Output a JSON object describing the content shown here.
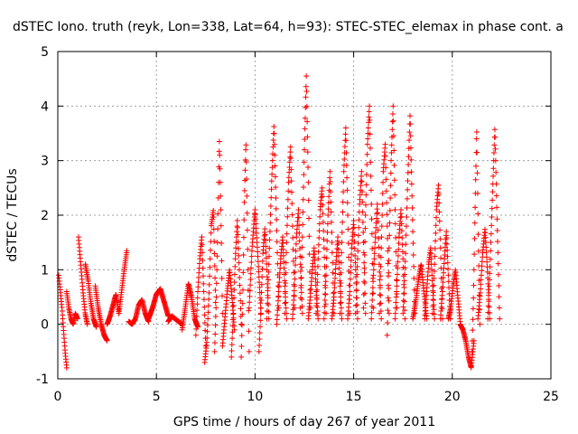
{
  "chart_data": {
    "type": "scatter",
    "title": "dSTEC Iono. truth (reyk, Lon=338, Lat=64, h=93): STEC-STEC_elemax in phase cont. a",
    "xlabel": "GPS time / hours of day 267 of year 2011",
    "ylabel": "dSTEC  / TECUs",
    "xlim": [
      0,
      25
    ],
    "ylim": [
      -1,
      5
    ],
    "xticks": [
      0,
      5,
      10,
      15,
      20,
      25
    ],
    "yticks": [
      -1,
      0,
      1,
      2,
      3,
      4,
      5
    ],
    "xtick_labels": [
      "0",
      "5",
      "10",
      "15",
      "20",
      "25"
    ],
    "ytick_labels": [
      "-1",
      "0",
      "1",
      "2",
      "3",
      "4",
      "5"
    ],
    "grid": true,
    "marker": "+",
    "color": "#ff0000",
    "series": [
      {
        "name": "dSTEC",
        "arcs": [
          {
            "t0": 0.05,
            "t1": 0.45,
            "shape": [
              0.9,
              0.6,
              0.3,
              -0.1,
              -0.5,
              -0.8
            ]
          },
          {
            "t0": 0.45,
            "t1": 1.0,
            "shape": [
              0.6,
              0.3,
              0.1,
              0.0,
              0.2,
              0.1
            ]
          },
          {
            "t0": 1.05,
            "t1": 1.5,
            "shape": [
              1.6,
              1.1,
              0.6,
              0.2,
              0.0
            ]
          },
          {
            "t0": 1.4,
            "t1": 1.95,
            "shape": [
              1.1,
              0.8,
              0.4,
              0.1,
              -0.05
            ]
          },
          {
            "t0": 1.9,
            "t1": 2.5,
            "shape": [
              0.7,
              0.3,
              0.0,
              -0.2,
              -0.3
            ]
          },
          {
            "t0": 2.5,
            "t1": 3.1,
            "shape": [
              0.0,
              0.15,
              0.35,
              0.55,
              0.2
            ]
          },
          {
            "t0": 3.1,
            "t1": 3.5,
            "shape": [
              0.2,
              0.6,
              1.0,
              1.35
            ]
          },
          {
            "t0": 3.6,
            "t1": 4.6,
            "shape": [
              0.05,
              0.0,
              0.1,
              0.35,
              0.45,
              0.2,
              0.05
            ]
          },
          {
            "t0": 4.6,
            "t1": 5.6,
            "shape": [
              0.1,
              0.3,
              0.55,
              0.65,
              0.4,
              0.15
            ]
          },
          {
            "t0": 5.6,
            "t1": 6.3,
            "shape": [
              0.05,
              0.15,
              0.1,
              0.05,
              0.0
            ]
          },
          {
            "t0": 6.3,
            "t1": 7.1,
            "shape": [
              -0.1,
              0.3,
              0.75,
              0.5,
              0.1,
              -0.05
            ]
          },
          {
            "t0": 7.0,
            "t1": 7.5,
            "shape": [
              -0.2,
              0.6,
              1.2,
              1.6,
              0.6,
              -0.4
            ]
          },
          {
            "t0": 7.45,
            "t1": 8.0,
            "shape": [
              -0.7,
              -0.3,
              0.6,
              1.8,
              2.1,
              0.4
            ]
          },
          {
            "t0": 7.95,
            "t1": 8.35,
            "shape": [
              -0.5,
              0.4,
              1.8,
              3.4,
              2.0,
              0.2
            ]
          },
          {
            "t0": 8.35,
            "t1": 8.95,
            "shape": [
              -0.4,
              0.1,
              0.6,
              1.0,
              0.5,
              -0.1
            ]
          },
          {
            "t0": 8.8,
            "t1": 9.3,
            "shape": [
              -0.6,
              0.2,
              1.2,
              1.9,
              1.0,
              0.0
            ]
          },
          {
            "t0": 9.3,
            "t1": 9.7,
            "shape": [
              -0.6,
              0.5,
              2.3,
              3.35,
              1.6,
              -0.5
            ]
          },
          {
            "t0": 9.7,
            "t1": 10.3,
            "shape": [
              0.3,
              1.4,
              2.1,
              1.2,
              0.2
            ]
          },
          {
            "t0": 10.2,
            "t1": 10.7,
            "shape": [
              -0.5,
              0.3,
              1.3,
              1.75,
              1.0,
              0.1
            ]
          },
          {
            "t0": 10.6,
            "t1": 11.2,
            "shape": [
              0.1,
              1.3,
              2.6,
              3.65,
              2.0,
              0.3
            ]
          },
          {
            "t0": 11.1,
            "t1": 11.6,
            "shape": [
              0.0,
              0.6,
              1.2,
              1.6,
              0.8,
              0.1
            ]
          },
          {
            "t0": 11.5,
            "t1": 12.0,
            "shape": [
              0.2,
              1.5,
              2.6,
              3.25,
              1.8,
              0.3
            ]
          },
          {
            "t0": 11.9,
            "t1": 12.4,
            "shape": [
              0.1,
              0.7,
              1.6,
              2.1,
              1.1,
              0.2
            ]
          },
          {
            "t0": 12.3,
            "t1": 12.8,
            "shape": [
              0.3,
              1.6,
              3.2,
              4.55,
              2.6,
              0.3
            ]
          },
          {
            "t0": 12.7,
            "t1": 13.2,
            "shape": [
              0.1,
              0.5,
              1.0,
              1.4,
              0.6,
              0.1
            ]
          },
          {
            "t0": 13.1,
            "t1": 13.6,
            "shape": [
              0.2,
              1.2,
              2.1,
              2.5,
              1.4,
              0.2
            ]
          },
          {
            "t0": 13.5,
            "t1": 14.0,
            "shape": [
              0.1,
              0.9,
              2.0,
              2.8,
              1.5,
              0.2
            ]
          },
          {
            "t0": 13.9,
            "t1": 14.4,
            "shape": [
              0.1,
              0.5,
              1.1,
              1.6,
              0.8,
              0.1
            ]
          },
          {
            "t0": 14.3,
            "t1": 14.8,
            "shape": [
              0.2,
              1.5,
              2.8,
              3.6,
              2.0,
              0.2
            ]
          },
          {
            "t0": 14.7,
            "t1": 15.2,
            "shape": [
              0.1,
              0.6,
              1.4,
              1.9,
              1.0,
              0.1
            ]
          },
          {
            "t0": 15.1,
            "t1": 15.6,
            "shape": [
              0.2,
              1.2,
              2.2,
              2.8,
              1.5,
              0.2
            ]
          },
          {
            "t0": 15.5,
            "t1": 16.0,
            "shape": [
              0.3,
              2.0,
              3.3,
              4.0,
              2.2,
              0.3
            ]
          },
          {
            "t0": 15.9,
            "t1": 16.4,
            "shape": [
              0.1,
              0.9,
              1.6,
              2.2,
              1.1,
              0.1
            ]
          },
          {
            "t0": 16.3,
            "t1": 16.8,
            "shape": [
              0.2,
              1.4,
              2.8,
              3.3,
              1.8,
              0.2
            ]
          },
          {
            "t0": 16.7,
            "t1": 17.2,
            "shape": [
              -0.2,
              1.4,
              3.0,
              4.0,
              2.1,
              0.3
            ]
          },
          {
            "t0": 17.1,
            "t1": 17.6,
            "shape": [
              0.1,
              0.8,
              1.6,
              2.1,
              1.2,
              0.1
            ]
          },
          {
            "t0": 17.5,
            "t1": 18.1,
            "shape": [
              0.2,
              1.2,
              2.6,
              3.85,
              2.0,
              0.2
            ]
          },
          {
            "t0": 18.0,
            "t1": 18.7,
            "shape": [
              0.1,
              0.4,
              0.8,
              1.1,
              0.6,
              0.1
            ]
          },
          {
            "t0": 18.6,
            "t1": 19.1,
            "shape": [
              0.1,
              0.6,
              1.1,
              1.4,
              0.7,
              0.1
            ]
          },
          {
            "t0": 19.0,
            "t1": 19.5,
            "shape": [
              0.2,
              1.1,
              2.1,
              2.55,
              1.4,
              0.1
            ]
          },
          {
            "t0": 19.4,
            "t1": 19.9,
            "shape": [
              0.1,
              0.6,
              1.2,
              1.7,
              0.9,
              0.1
            ]
          },
          {
            "t0": 19.8,
            "t1": 20.4,
            "shape": [
              0.1,
              0.3,
              0.7,
              1.0,
              0.5,
              0.05
            ]
          },
          {
            "t0": 20.4,
            "t1": 21.1,
            "shape": [
              0.0,
              -0.1,
              -0.3,
              -0.6,
              -0.8,
              -0.3
            ]
          },
          {
            "t0": 21.0,
            "t1": 21.4,
            "shape": [
              -0.5,
              0.6,
              2.2,
              3.6,
              1.5,
              0.0
            ]
          },
          {
            "t0": 21.3,
            "t1": 21.9,
            "shape": [
              0.1,
              0.6,
              1.3,
              1.75,
              1.0,
              0.1
            ]
          },
          {
            "t0": 21.8,
            "t1": 22.4,
            "shape": [
              0.1,
              1.1,
              2.4,
              3.6,
              1.8,
              0.1
            ]
          }
        ]
      }
    ]
  }
}
